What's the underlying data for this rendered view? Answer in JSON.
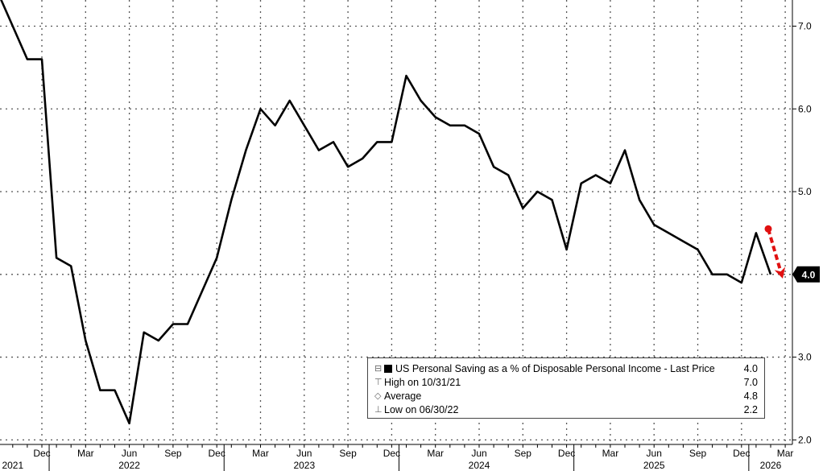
{
  "chart_data": {
    "type": "line",
    "title": "",
    "xlabel": "",
    "ylabel": "",
    "ylim": [
      1.95,
      7.35
    ],
    "y_ticks": [
      "2.0",
      "3.0",
      "4.0",
      "5.0",
      "6.0",
      "7.0"
    ],
    "y_axis_side": "right",
    "grid": true,
    "month_ticks": [
      {
        "label": "Dec",
        "date": "2021-12"
      },
      {
        "label": "Mar",
        "date": "2022-03"
      },
      {
        "label": "Jun",
        "date": "2022-06"
      },
      {
        "label": "Sep",
        "date": "2022-09"
      },
      {
        "label": "Dec",
        "date": "2022-12"
      },
      {
        "label": "Mar",
        "date": "2023-03"
      },
      {
        "label": "Jun",
        "date": "2023-06"
      },
      {
        "label": "Sep",
        "date": "2023-09"
      },
      {
        "label": "Dec",
        "date": "2023-12"
      },
      {
        "label": "Mar",
        "date": "2024-03"
      },
      {
        "label": "Jun",
        "date": "2024-06"
      },
      {
        "label": "Sep",
        "date": "2024-09"
      },
      {
        "label": "Dec",
        "date": "2024-12"
      },
      {
        "label": "Mar",
        "date": "2025-03"
      },
      {
        "label": "Jun",
        "date": "2025-06"
      },
      {
        "label": "Sep",
        "date": "2025-09"
      },
      {
        "label": "Dec",
        "date": "2025-12"
      },
      {
        "label": "Mar",
        "date": "2026-03"
      }
    ],
    "year_labels": [
      {
        "label": "2021",
        "date": "2021-10"
      },
      {
        "label": "2022",
        "date": "2022-06"
      },
      {
        "label": "2023",
        "date": "2023-06"
      },
      {
        "label": "2024",
        "date": "2024-06"
      },
      {
        "label": "2025",
        "date": "2025-06"
      },
      {
        "label": "2026",
        "date": "2026-02"
      }
    ],
    "series": [
      {
        "name": "US Personal Saving as a % of Disposable Personal Income",
        "x": [
          "2021-09",
          "2021-10",
          "2021-11",
          "2021-12",
          "2022-01",
          "2022-02",
          "2022-03",
          "2022-04",
          "2022-05",
          "2022-06",
          "2022-07",
          "2022-08",
          "2022-09",
          "2022-10",
          "2022-11",
          "2022-12",
          "2023-01",
          "2023-02",
          "2023-03",
          "2023-04",
          "2023-05",
          "2023-06",
          "2023-07",
          "2023-08",
          "2023-09",
          "2023-10",
          "2023-11",
          "2023-12",
          "2024-01",
          "2024-02",
          "2024-03",
          "2024-04",
          "2024-05",
          "2024-06",
          "2024-07",
          "2024-08",
          "2024-09",
          "2024-10",
          "2024-11",
          "2024-12",
          "2025-01",
          "2025-02",
          "2025-03",
          "2025-04",
          "2025-05",
          "2025-06",
          "2025-07",
          "2025-08",
          "2025-09",
          "2025-10",
          "2025-11",
          "2025-12",
          "2026-01",
          "2026-02"
        ],
        "values": [
          7.4,
          7.0,
          6.6,
          6.6,
          4.2,
          4.1,
          3.2,
          2.6,
          2.6,
          2.2,
          3.3,
          3.2,
          3.4,
          3.4,
          3.8,
          4.2,
          4.9,
          5.5,
          6.0,
          5.8,
          6.1,
          5.8,
          5.5,
          5.6,
          5.3,
          5.4,
          5.6,
          5.6,
          6.4,
          6.1,
          5.9,
          5.8,
          5.8,
          5.7,
          5.3,
          5.2,
          4.8,
          5.0,
          4.9,
          4.3,
          5.1,
          5.2,
          5.1,
          5.5,
          4.9,
          4.6,
          4.5,
          4.4,
          4.3,
          4.0,
          4.0,
          3.9,
          4.5,
          4.0
        ]
      }
    ],
    "last_value_label": "4.0",
    "annotation": {
      "type": "arrow",
      "color": "#e01010",
      "from_date": "2026-02",
      "from_value": 4.55,
      "to_date": "2026-02",
      "to_value": 3.95
    },
    "legend": {
      "placement": "bottom-right",
      "title": "US Personal Saving as a % of Disposable Personal Income - Last Price",
      "title_value": "4.0",
      "rows": [
        {
          "label": "High on 10/31/21",
          "value": "7.0",
          "symbol": "high"
        },
        {
          "label": "Average",
          "value": "4.8",
          "symbol": "average"
        },
        {
          "label": "Low on 06/30/22",
          "value": "2.2",
          "symbol": "low"
        }
      ]
    }
  }
}
